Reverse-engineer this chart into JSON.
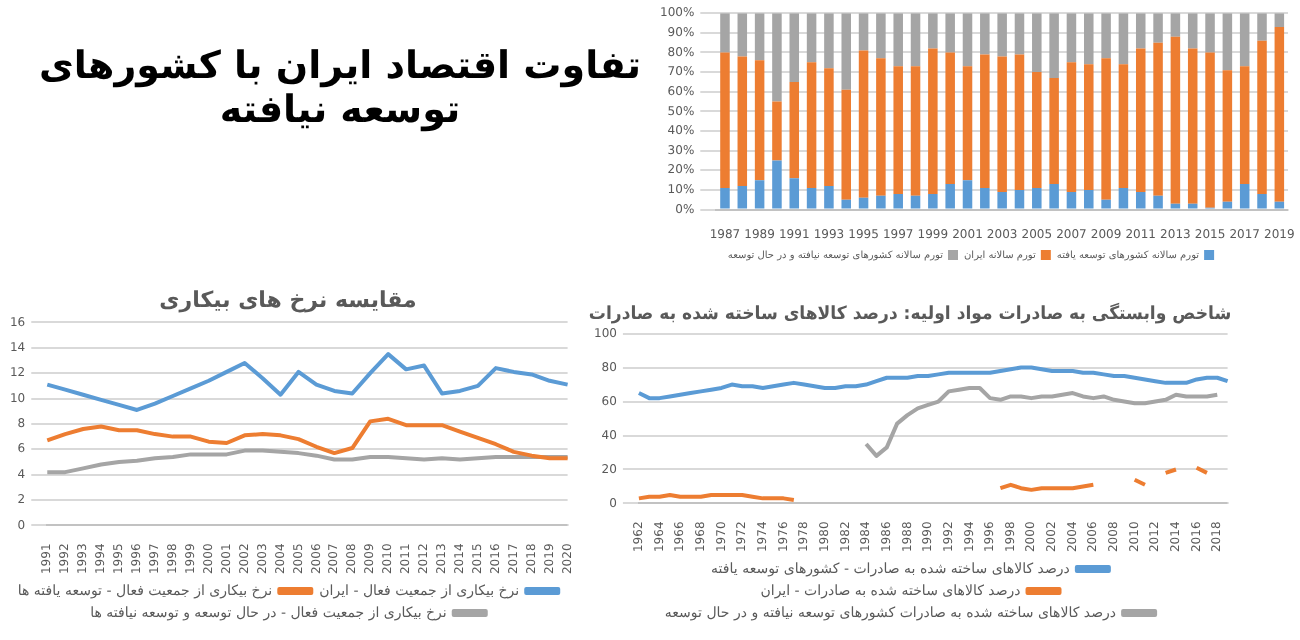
{
  "chart_data": [
    {
      "type": "bar",
      "title": "تفاوت اقتصاد ایران با کشورهای توسعه نیافته",
      "stacked": true,
      "grid": "y",
      "legend": "bottom",
      "categories": [
        "1987",
        null,
        "1989",
        null,
        "1991",
        null,
        "1993",
        null,
        "1995",
        null,
        "1997",
        null,
        "1999",
        null,
        "2001",
        null,
        "2003",
        null,
        "2005",
        null,
        "2007",
        null,
        "2009",
        null,
        "2011",
        null,
        "2013",
        null,
        "2015",
        null,
        "2017",
        null,
        "2019"
      ],
      "ylim": [
        0,
        100
      ],
      "yticks": [
        {
          "value": 0,
          "label": "0%"
        },
        {
          "value": 10,
          "label": "10%"
        },
        {
          "value": 20,
          "label": "20%"
        },
        {
          "value": 30,
          "label": "30%"
        },
        {
          "value": 40,
          "label": "40%"
        },
        {
          "value": 50,
          "label": "50%"
        },
        {
          "value": 60,
          "label": "60%"
        },
        {
          "value": 70,
          "label": "70%"
        },
        {
          "value": 80,
          "label": "80%"
        },
        {
          "value": 90,
          "label": "90%"
        },
        {
          "value": 100,
          "label": "100%"
        }
      ],
      "series": [
        {
          "name": "تورم سالانه کشورهای توسعه یافته",
          "color": "#5b9bd5",
          "values": [
            11,
            12,
            15,
            25,
            16,
            11,
            12,
            5,
            6,
            7,
            8,
            7,
            8,
            13,
            15,
            11,
            9,
            10,
            11,
            13,
            9,
            10,
            5,
            11,
            9,
            7,
            3,
            3,
            1,
            4,
            13,
            8,
            4
          ]
        },
        {
          "name": "تورم سالانه ایران",
          "color": "#ed7d31",
          "values": [
            69,
            66,
            61,
            30,
            49,
            64,
            60,
            56,
            75,
            70,
            65,
            66,
            74,
            67,
            58,
            68,
            69,
            69,
            59,
            54,
            66,
            64,
            72,
            63,
            73,
            78,
            85,
            79,
            79,
            67,
            60,
            78,
            89
          ]
        },
        {
          "name": "تورم سالانه کشورهای توسعه نیافته و در حال توسعه",
          "color": "#a5a5a5",
          "values": [
            20,
            22,
            24,
            45,
            35,
            25,
            28,
            39,
            19,
            23,
            27,
            27,
            18,
            20,
            27,
            21,
            22,
            21,
            30,
            33,
            25,
            26,
            23,
            26,
            18,
            15,
            12,
            18,
            20,
            29,
            27,
            14,
            7
          ]
        }
      ]
    },
    {
      "type": "line",
      "title": "مقایسه نرخ های بیکاری",
      "grid": "y",
      "legend": "bottom",
      "marker": "none",
      "categories": [
        "1991",
        "1992",
        "1993",
        "1994",
        "1995",
        "1996",
        "1997",
        "1998",
        "1999",
        "2000",
        "2001",
        "2002",
        "2003",
        "2004",
        "2005",
        "2006",
        "2007",
        "2008",
        "2009",
        "2010",
        "2011",
        "2012",
        "2013",
        "2014",
        "2015",
        "2016",
        "2017",
        "2018",
        "2019",
        "2020"
      ],
      "ylim": [
        0,
        16
      ],
      "yticks": [
        0,
        2,
        4,
        6,
        8,
        10,
        12,
        14,
        16
      ],
      "series": [
        {
          "name": "نرخ بیکاری از جمعیت فعال - ایران",
          "color": "#5b9bd5",
          "values": [
            11.1,
            10.7,
            10.3,
            9.9,
            9.5,
            9.1,
            9.6,
            10.2,
            10.8,
            11.4,
            12.1,
            12.8,
            11.6,
            10.3,
            12.1,
            11.1,
            10.6,
            10.4,
            12.0,
            13.5,
            12.3,
            12.6,
            10.4,
            10.6,
            11.0,
            12.4,
            12.1,
            11.9,
            11.4,
            11.1
          ]
        },
        {
          "name": "نرخ بیکاری از جمعیت فعال - توسعه یافته ها",
          "color": "#ed7d31",
          "values": [
            6.7,
            7.2,
            7.6,
            7.8,
            7.5,
            7.5,
            7.2,
            7.0,
            7.0,
            6.6,
            6.5,
            7.1,
            7.2,
            7.1,
            6.8,
            6.2,
            5.7,
            6.1,
            8.2,
            8.4,
            7.9,
            7.9,
            7.9,
            7.4,
            6.9,
            6.4,
            5.8,
            5.5,
            5.3,
            5.3
          ]
        },
        {
          "name": "نرخ بیکاری از جمعیت فعال - در حال توسعه و توسعه نیافته ها",
          "color": "#a5a5a5",
          "values": [
            4.2,
            4.2,
            4.5,
            4.8,
            5.0,
            5.1,
            5.3,
            5.4,
            5.6,
            5.6,
            5.6,
            5.9,
            5.9,
            5.8,
            5.7,
            5.5,
            5.2,
            5.2,
            5.4,
            5.4,
            5.3,
            5.2,
            5.3,
            5.2,
            5.3,
            5.4,
            5.4,
            5.4,
            5.4,
            5.4
          ]
        }
      ]
    },
    {
      "type": "line",
      "title": "شاخص وابستگی به صادرات مواد اولیه: درصد کالاهای ساخته شده به صادرات",
      "grid": "y",
      "legend": "bottom",
      "marker": "none",
      "categories": [
        "1962",
        null,
        "1964",
        null,
        "1966",
        null,
        "1968",
        null,
        "1970",
        null,
        "1972",
        null,
        "1974",
        null,
        "1976",
        null,
        "1978",
        null,
        "1980",
        null,
        "1982",
        null,
        "1984",
        null,
        "1986",
        null,
        "1988",
        null,
        "1990",
        null,
        "1992",
        null,
        "1994",
        null,
        "1996",
        null,
        "1998",
        null,
        "2000",
        null,
        "2002",
        null,
        "2004",
        null,
        "2006",
        null,
        "2008",
        null,
        "2010",
        null,
        "2012",
        null,
        "2014",
        null,
        "2016",
        null,
        "2018",
        null
      ],
      "ylim": [
        0,
        100
      ],
      "yticks": [
        0,
        20,
        40,
        60,
        80,
        100
      ],
      "series": [
        {
          "name": "درصد کالاهای ساخته شده به صادرات - کشورهای توسعه یافته",
          "color": "#5b9bd5",
          "values": [
            65,
            62,
            62,
            63,
            64,
            65,
            66,
            67,
            68,
            70,
            69,
            69,
            68,
            69,
            70,
            71,
            70,
            69,
            68,
            68,
            69,
            69,
            70,
            72,
            74,
            74,
            74,
            75,
            75,
            76,
            77,
            77,
            77,
            77,
            77,
            78,
            79,
            80,
            80,
            79,
            78,
            78,
            78,
            77,
            77,
            76,
            75,
            75,
            74,
            73,
            72,
            71,
            71,
            71,
            73,
            74,
            74,
            72
          ]
        },
        {
          "name": "درصد کالاهای ساخته شده به صادرات - ایران",
          "color": "#ed7d31",
          "values": [
            3,
            4,
            4,
            5,
            4,
            4,
            4,
            5,
            5,
            5,
            5,
            4,
            3,
            3,
            3,
            2,
            null,
            null,
            null,
            null,
            null,
            null,
            null,
            null,
            null,
            null,
            null,
            null,
            null,
            null,
            null,
            null,
            null,
            null,
            null,
            9,
            11,
            9,
            8,
            9,
            9,
            9,
            9,
            10,
            11,
            null,
            null,
            null,
            14,
            11,
            null,
            18,
            20,
            null,
            21,
            18,
            null,
            null
          ]
        },
        {
          "name": "درصد کالاهای ساخته شده به صادرات کشورهای توسعه نیافته و در حال توسعه",
          "color": "#a5a5a5",
          "values": [
            null,
            null,
            null,
            null,
            null,
            null,
            null,
            null,
            null,
            null,
            null,
            null,
            null,
            null,
            null,
            null,
            null,
            null,
            null,
            null,
            null,
            null,
            35,
            28,
            33,
            47,
            52,
            56,
            58,
            60,
            66,
            67,
            68,
            68,
            62,
            61,
            63,
            63,
            62,
            63,
            63,
            64,
            65,
            63,
            62,
            63,
            61,
            60,
            59,
            59,
            60,
            61,
            64,
            63,
            63,
            63,
            64,
            null
          ]
        }
      ]
    }
  ]
}
